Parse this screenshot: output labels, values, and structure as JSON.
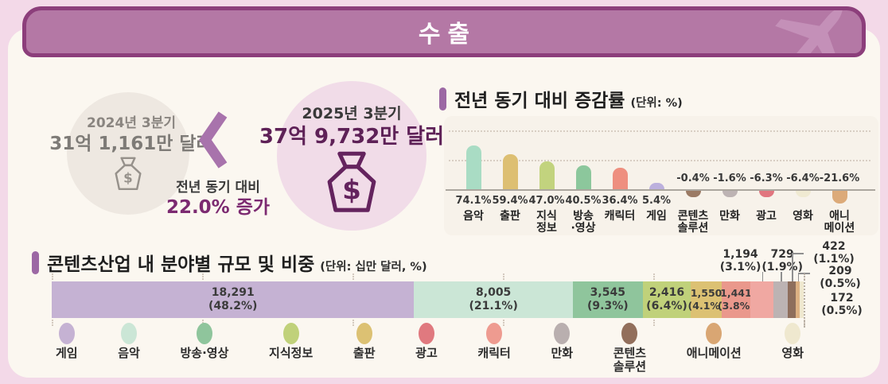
{
  "page": {
    "header_title": "수출"
  },
  "summary": {
    "previous": {
      "period": "2024년 3분기",
      "amount": "31억 1,161만 달러"
    },
    "current": {
      "period": "2025년 3분기",
      "amount": "37억 9,732만 달러"
    },
    "comparison": {
      "label": "전년 동기 대비",
      "change": "22.0% 증가"
    }
  },
  "growth": {
    "title_prefix": "전년 동기 대비 ",
    "title_emph": "증감률",
    "unit": "(단위: %)"
  },
  "share": {
    "title_prefix": "콘텐츠산업 내 분야별 ",
    "title_emph": "규모 및 비중",
    "unit": "(단위: 십만 달러, %)"
  },
  "colors": {
    "header_bar": "#b478a5",
    "header_border": "#8c3e7b",
    "card_bg": "#fbf7f0",
    "page_bg": "#f3d9e8",
    "accent_purple": "#9c68a4",
    "dark_plum": "#5e2157"
  },
  "chart_data": [
    {
      "type": "bar",
      "title": "전년 동기 대비 증감률",
      "unit": "%",
      "categories": [
        "음악",
        "출판",
        "지식정보",
        "방송·영상",
        "캐릭터",
        "게임",
        "콘텐츠솔루션",
        "만화",
        "광고",
        "영화",
        "애니메이션"
      ],
      "category_lines": [
        [
          "음악"
        ],
        [
          "출판"
        ],
        [
          "지식",
          "정보"
        ],
        [
          "방송",
          "·영상"
        ],
        [
          "캐릭터"
        ],
        [
          "게임"
        ],
        [
          "콘텐츠",
          "솔루션"
        ],
        [
          "만화"
        ],
        [
          "광고"
        ],
        [
          "영화"
        ],
        [
          "애니",
          "메이션"
        ]
      ],
      "values": [
        74.1,
        59.4,
        47.0,
        40.5,
        36.4,
        5.4,
        -0.4,
        -1.6,
        -6.3,
        -6.4,
        -21.6
      ],
      "value_labels": [
        "74.1%",
        "59.4%",
        "47.0%",
        "40.5%",
        "36.4%",
        "5.4%",
        "-0.4%",
        "-1.6%",
        "-6.3%",
        "-6.4%",
        "-21.6%"
      ],
      "colors": [
        "#a9dcc4",
        "#ddbf72",
        "#c2d37e",
        "#8cc79c",
        "#ee8f7f",
        "#bcb0dd",
        "#9b7a64",
        "#bdb3b3",
        "#e1767f",
        "#f0ead2",
        "#dcaa79"
      ],
      "ylim": [
        -30,
        100
      ],
      "grid": "dotted-horizontal",
      "legend_position": "none"
    },
    {
      "type": "stacked-bar",
      "title": "콘텐츠산업 내 분야별 규모 및 비중",
      "unit": "십만 달러, %",
      "segments": [
        {
          "name": "게임",
          "value": 18291,
          "value_label": "18,291",
          "pct": 48.2,
          "pct_label": "(48.2%)",
          "color": "#c5b2d3",
          "label": "inside"
        },
        {
          "name": "음악",
          "value": 8005,
          "value_label": "8,005",
          "pct": 21.1,
          "pct_label": "(21.1%)",
          "color": "#cbe6d6",
          "label": "inside"
        },
        {
          "name": "방송·영상",
          "value": 3545,
          "value_label": "3,545",
          "pct": 9.3,
          "pct_label": "(9.3%)",
          "color": "#8fc59c",
          "label": "inside"
        },
        {
          "name": "지식정보",
          "value": 2416,
          "value_label": "2,416",
          "pct": 6.4,
          "pct_label": "(6.4%)",
          "color": "#c0d17a",
          "label": "inside"
        },
        {
          "name": "출판",
          "value": 1550,
          "value_label": "1,550",
          "pct": 4.1,
          "pct_label": "(4.1%)",
          "color": "#dcc173",
          "label": "inside"
        },
        {
          "name": "광고",
          "value": 1441,
          "value_label": "1,441",
          "pct": 3.8,
          "pct_label": "(3.8%)",
          "color": "#ea988c",
          "label": "inside"
        },
        {
          "name": "캐릭터",
          "value": 1194,
          "value_label": "1,194",
          "pct": 3.1,
          "pct_label": "(3.1%)",
          "color": "#f0a8a2",
          "label": "callout"
        },
        {
          "name": "만화",
          "value": 729,
          "value_label": "729",
          "pct": 1.9,
          "pct_label": "(1.9%)",
          "color": "#bcb3b3",
          "label": "callout"
        },
        {
          "name": "콘텐츠솔루션",
          "value": 422,
          "value_label": "422",
          "pct": 1.1,
          "pct_label": "(1.1%)",
          "color": "#8e6e5c",
          "label": "callout"
        },
        {
          "name": "애니메이션",
          "value": 209,
          "value_label": "209",
          "pct": 0.5,
          "pct_label": "(0.5%)",
          "color": "#dcb183",
          "label": "callout"
        },
        {
          "name": "영화",
          "value": 172,
          "value_label": "172",
          "pct": 0.5,
          "pct_label": "(0.5%)",
          "color": "#efe8cf",
          "label": "callout"
        }
      ],
      "legend": [
        "게임",
        "음악",
        "방송·영상",
        "지식정보",
        "출판",
        "광고",
        "캐릭터",
        "만화",
        "콘텐츠솔루션",
        "애니메이션",
        "영화"
      ],
      "legend_lines": [
        [
          "게임"
        ],
        [
          "음악"
        ],
        [
          "방송·영상"
        ],
        [
          "지식정보"
        ],
        [
          "출판"
        ],
        [
          "광고"
        ],
        [
          "캐릭터"
        ],
        [
          "만화"
        ],
        [
          "콘텐츠",
          "솔루션"
        ],
        [
          "애니메이션"
        ],
        [
          "영화"
        ]
      ],
      "legend_colors": [
        "#c5b2d3",
        "#cbe6d6",
        "#8fc59c",
        "#c0d17a",
        "#dcc173",
        "#e0797f",
        "#ee9b90",
        "#b9afaf",
        "#926f5c",
        "#d9a673",
        "#efe8cf"
      ],
      "legend_position": "bottom"
    }
  ]
}
